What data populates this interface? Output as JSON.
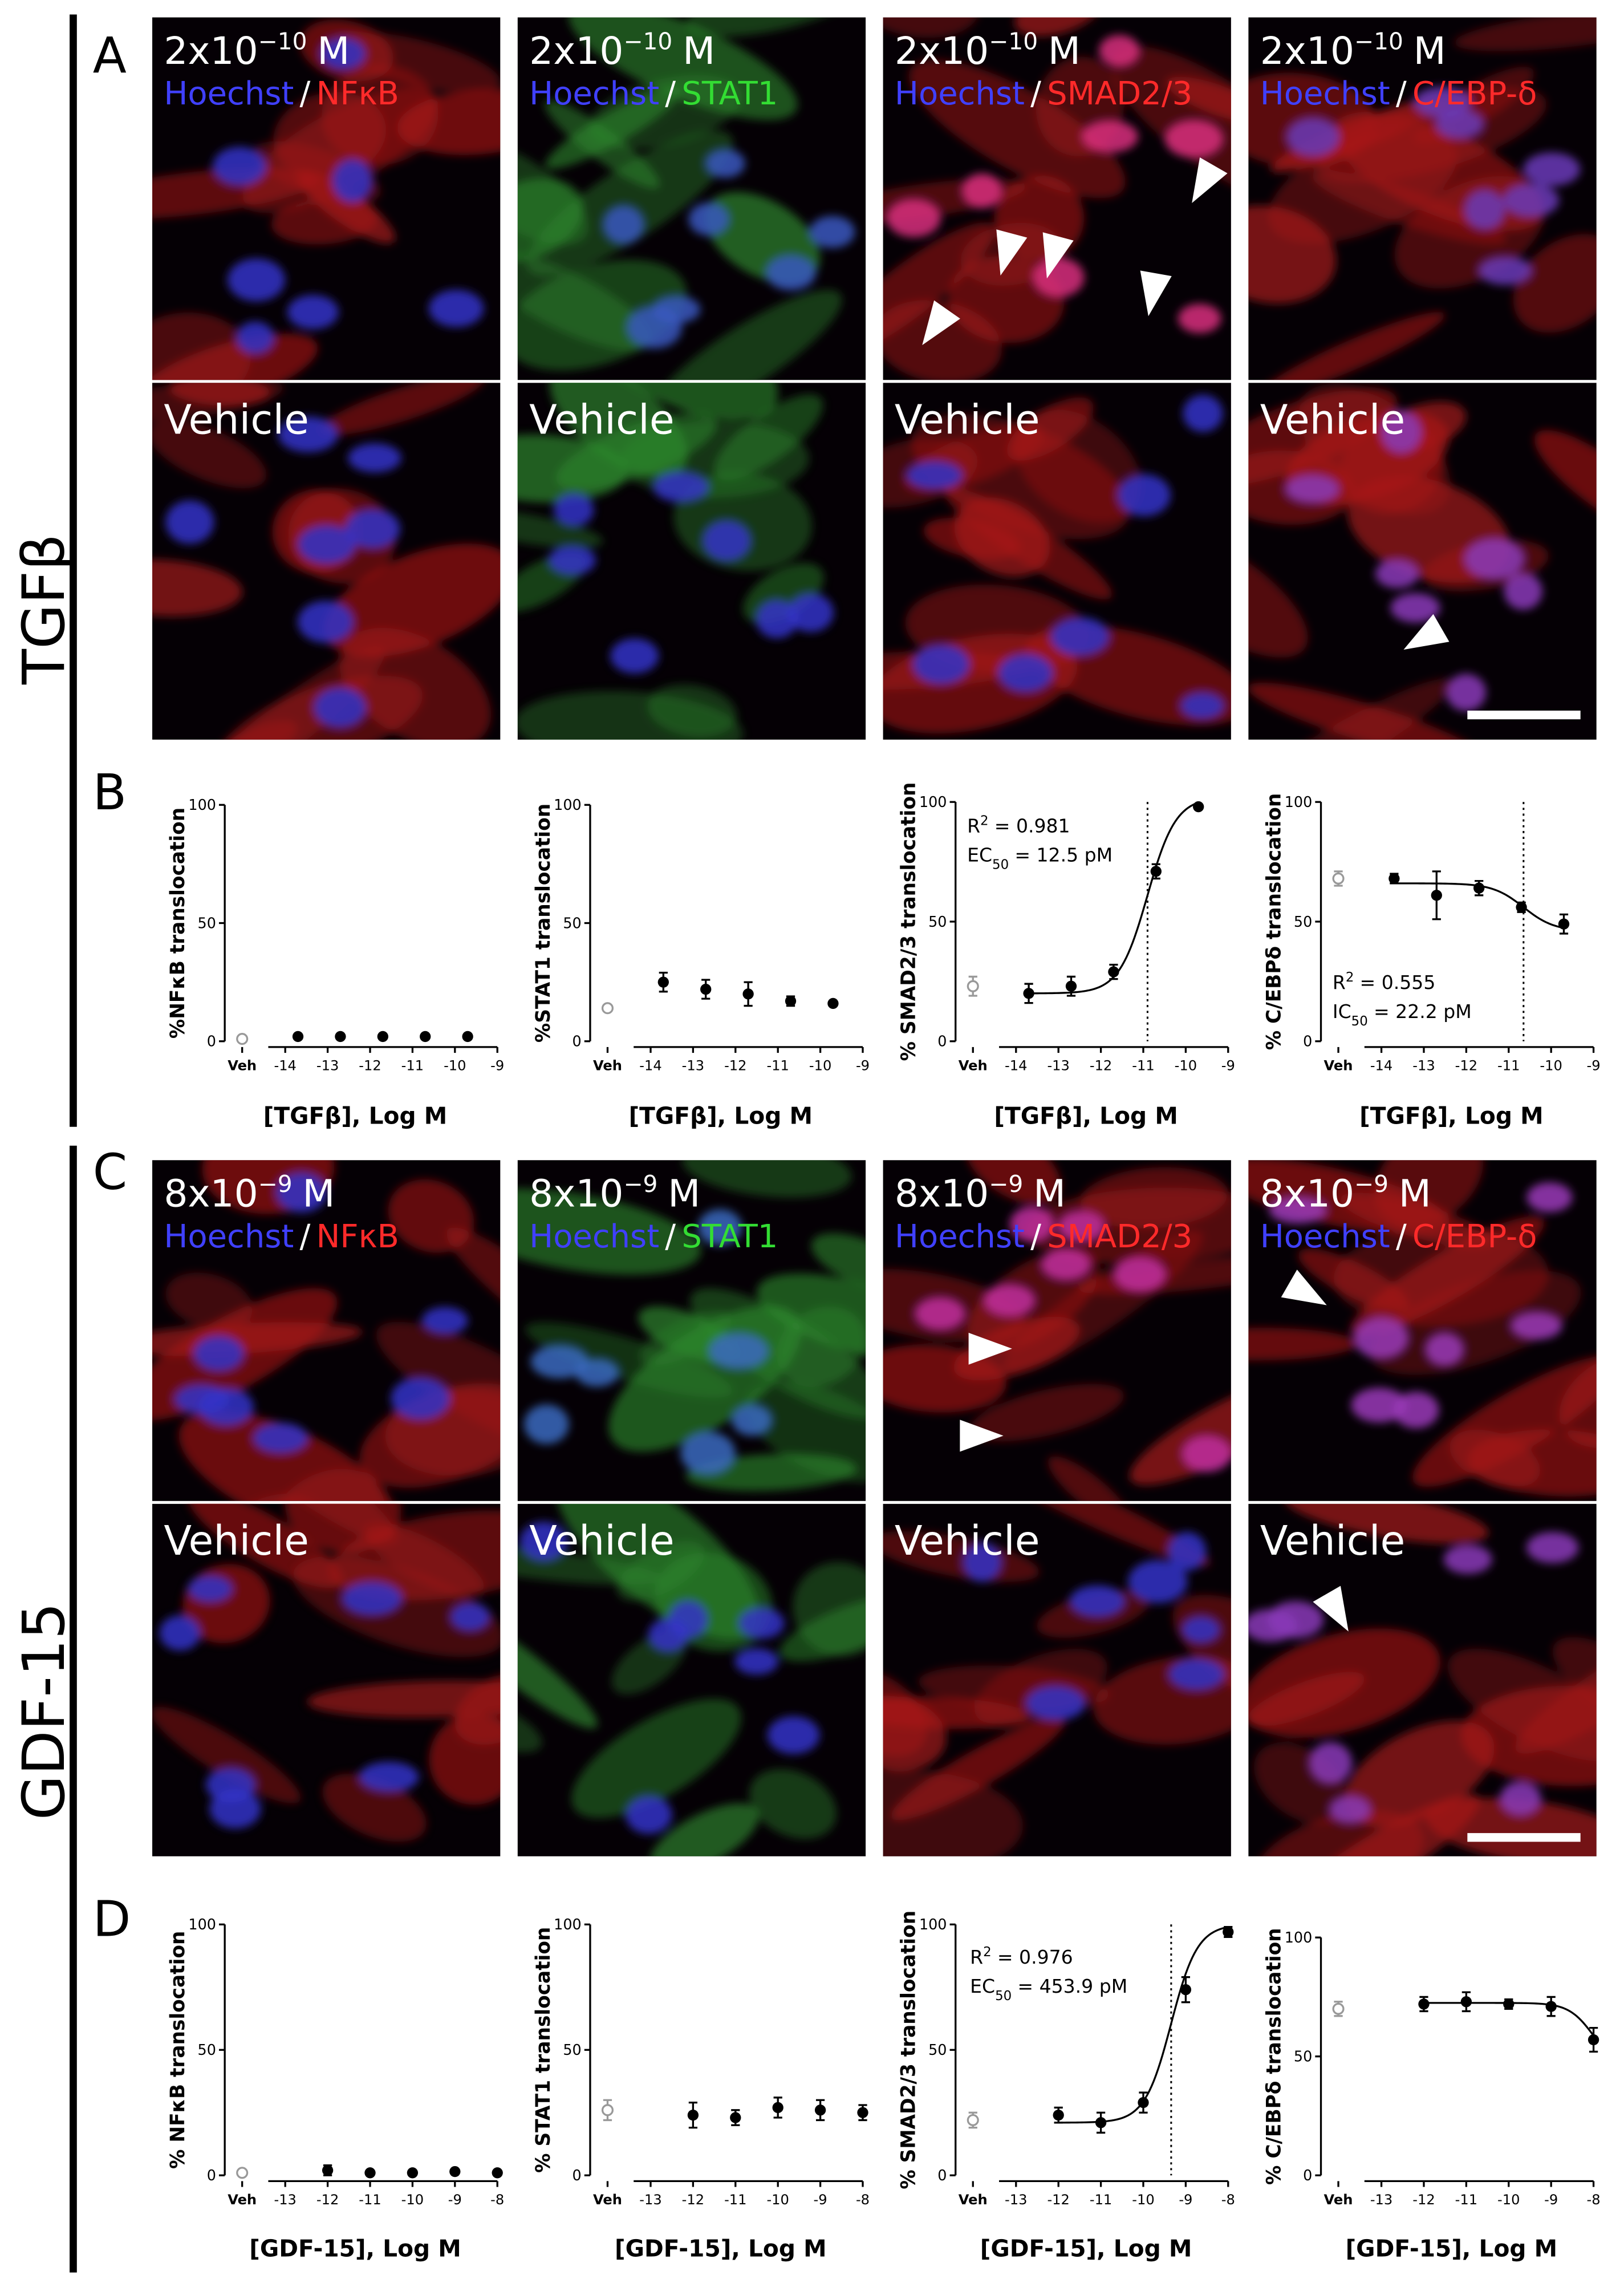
{
  "figure": {
    "sections": [
      {
        "row_label": "TGFβ",
        "image_letter": "A",
        "chart_letter": "B",
        "images": [
          {
            "dose": {
              "base": "2x10",
              "exponent": "−10",
              "unit": "M"
            },
            "channels": [
              {
                "text": "Hoechst",
                "color": "#4040ff"
              },
              {
                "text": "/",
                "color": "#ffffff"
              },
              {
                "text": "NFκB",
                "color": "#ff2a2a"
              }
            ],
            "vehicle_label": "Vehicle"
          },
          {
            "dose": {
              "base": "2x10",
              "exponent": "−10",
              "unit": "M"
            },
            "channels": [
              {
                "text": "Hoechst",
                "color": "#4040ff"
              },
              {
                "text": "/",
                "color": "#ffffff"
              },
              {
                "text": "STAT1",
                "color": "#33dd33"
              }
            ],
            "vehicle_label": "Vehicle"
          },
          {
            "dose": {
              "base": "2x10",
              "exponent": "−10",
              "unit": "M"
            },
            "channels": [
              {
                "text": "Hoechst",
                "color": "#4040ff"
              },
              {
                "text": "/",
                "color": "#ffffff"
              },
              {
                "text": "SMAD2/3",
                "color": "#ff2a2a"
              }
            ],
            "vehicle_label": "Vehicle"
          },
          {
            "dose": {
              "base": "2x10",
              "exponent": "−10",
              "unit": "M"
            },
            "channels": [
              {
                "text": "Hoechst",
                "color": "#4040ff"
              },
              {
                "text": "/",
                "color": "#ffffff"
              },
              {
                "text": "C/EBP-δ",
                "color": "#ff2a2a"
              }
            ],
            "vehicle_label": "Vehicle"
          }
        ]
      },
      {
        "row_label": "GDF-15",
        "image_letter": "C",
        "chart_letter": "D",
        "images": [
          {
            "dose": {
              "base": "8x10",
              "exponent": "−9",
              "unit": "M"
            },
            "channels": [
              {
                "text": "Hoechst",
                "color": "#4040ff"
              },
              {
                "text": "/",
                "color": "#ffffff"
              },
              {
                "text": "NFκB",
                "color": "#ff2a2a"
              }
            ],
            "vehicle_label": "Vehicle"
          },
          {
            "dose": {
              "base": "8x10",
              "exponent": "−9",
              "unit": "M"
            },
            "channels": [
              {
                "text": "Hoechst",
                "color": "#4040ff"
              },
              {
                "text": "/",
                "color": "#ffffff"
              },
              {
                "text": "STAT1",
                "color": "#33dd33"
              }
            ],
            "vehicle_label": "Vehicle"
          },
          {
            "dose": {
              "base": "8x10",
              "exponent": "−9",
              "unit": "M"
            },
            "channels": [
              {
                "text": "Hoechst",
                "color": "#4040ff"
              },
              {
                "text": "/",
                "color": "#ffffff"
              },
              {
                "text": "SMAD2/3",
                "color": "#ff2a2a"
              }
            ],
            "vehicle_label": "Vehicle"
          },
          {
            "dose": {
              "base": "8x10",
              "exponent": "−9",
              "unit": "M"
            },
            "channels": [
              {
                "text": "Hoechst",
                "color": "#4040ff"
              },
              {
                "text": "/",
                "color": "#ffffff"
              },
              {
                "text": "C/EBP-δ",
                "color": "#ff2a2a"
              }
            ],
            "vehicle_label": "Vehicle"
          }
        ]
      }
    ]
  },
  "chart_data": [
    {
      "type": "scatter",
      "ylabel": "%NFκB translocation",
      "xlabel": "[TGFβ], Log M",
      "ylim": [
        0,
        100
      ],
      "yticks": [
        0,
        50,
        100
      ],
      "xlim": [
        -14.4,
        -9
      ],
      "xticks": [
        -14,
        -13,
        -12,
        -11,
        -10,
        -9
      ],
      "color": "#000000",
      "vehicle": {
        "label": "Veh",
        "value": 1,
        "error": 0.5,
        "color": "#999999"
      },
      "x": [
        -13.7,
        -12.7,
        -11.7,
        -10.7,
        -9.7
      ],
      "values": [
        2,
        2,
        2,
        2,
        2
      ],
      "errors": [
        0.5,
        0.5,
        0.5,
        0.5,
        0.5
      ]
    },
    {
      "type": "scatter",
      "ylabel": "%STAT1 translocation",
      "xlabel": "[TGFβ], Log M",
      "ylim": [
        0,
        100
      ],
      "yticks": [
        0,
        50,
        100
      ],
      "xlim": [
        -14.4,
        -9
      ],
      "xticks": [
        -14,
        -13,
        -12,
        -11,
        -10,
        -9
      ],
      "color": "#000000",
      "vehicle": {
        "label": "Veh",
        "value": 14,
        "error": 1,
        "color": "#999999"
      },
      "x": [
        -13.7,
        -12.7,
        -11.7,
        -10.7,
        -9.7
      ],
      "values": [
        25,
        22,
        20,
        17,
        16
      ],
      "errors": [
        4,
        4,
        5,
        2,
        1
      ]
    },
    {
      "type": "scatter",
      "ylabel": "% SMAD2/3 translocation",
      "xlabel": "[TGFβ], Log M",
      "ylim": [
        0,
        100
      ],
      "yticks": [
        0,
        50,
        100
      ],
      "xlim": [
        -14.4,
        -9
      ],
      "xticks": [
        -14,
        -13,
        -12,
        -11,
        -10,
        -9
      ],
      "color": "#000000",
      "vehicle": {
        "label": "Veh",
        "value": 23,
        "error": 4,
        "color": "#999999"
      },
      "x": [
        -13.7,
        -12.7,
        -11.7,
        -10.7,
        -9.7
      ],
      "values": [
        20,
        23,
        29,
        71,
        98
      ],
      "errors": [
        4,
        4,
        3,
        3,
        1
      ],
      "fit": {
        "bottom": 20,
        "top": 102,
        "log_ec50": -10.9,
        "hill": 1.3,
        "dotted_line": true
      },
      "annotation": [
        [
          {
            "text": "R"
          },
          {
            "text": "2",
            "script": "sup"
          },
          {
            "text": "= 0.981"
          }
        ],
        [
          {
            "text": "EC"
          },
          {
            "text": "50",
            "script": "sub"
          },
          {
            "text": "= 12.5 pM"
          }
        ]
      ]
    },
    {
      "type": "scatter",
      "ylabel": "% C/EBPδ translocation",
      "xlabel": "[TGFβ], Log M",
      "ylim": [
        0,
        100
      ],
      "yticks": [
        0,
        50,
        100
      ],
      "xlim": [
        -14.4,
        -9
      ],
      "xticks": [
        -14,
        -13,
        -12,
        -11,
        -10,
        -9
      ],
      "color": "#000000",
      "vehicle": {
        "label": "Veh",
        "value": 68,
        "error": 3,
        "color": "#999999"
      },
      "x": [
        -13.7,
        -12.7,
        -11.7,
        -10.7,
        -9.7
      ],
      "values": [
        68,
        61,
        64,
        56,
        49
      ],
      "errors": [
        2,
        10,
        3,
        2,
        4
      ],
      "fit": {
        "bottom": 46,
        "top": 66,
        "log_ec50": -10.65,
        "hill": -1.2,
        "dotted_line": true
      },
      "annotation": [
        [
          {
            "text": "R"
          },
          {
            "text": "2",
            "script": "sup"
          },
          {
            "text": "= 0.555"
          }
        ],
        [
          {
            "text": "IC"
          },
          {
            "text": "50",
            "script": "sub"
          },
          {
            "text": "= 22.2 pM"
          }
        ]
      ]
    },
    {
      "type": "scatter",
      "ylabel": "% NFκB translocation",
      "xlabel": "[GDF-15], Log M",
      "ylim": [
        0,
        100
      ],
      "yticks": [
        0,
        50,
        100
      ],
      "xlim": [
        -13.4,
        -8
      ],
      "xticks": [
        -13,
        -12,
        -11,
        -10,
        -9,
        -8
      ],
      "color": "#000000",
      "vehicle": {
        "label": "Veh",
        "value": 1,
        "error": 0.5,
        "color": "#999999"
      },
      "x": [
        -12,
        -11,
        -10,
        -9,
        -8
      ],
      "values": [
        2,
        1,
        1,
        1.5,
        1
      ],
      "errors": [
        2,
        0.5,
        0.5,
        0.5,
        0.5
      ]
    },
    {
      "type": "scatter",
      "ylabel": "% STAT1 translocation",
      "xlabel": "[GDF-15], Log M",
      "ylim": [
        0,
        100
      ],
      "yticks": [
        0,
        50,
        100
      ],
      "xlim": [
        -13.4,
        -8
      ],
      "xticks": [
        -13,
        -12,
        -11,
        -10,
        -9,
        -8
      ],
      "color": "#000000",
      "vehicle": {
        "label": "Veh",
        "value": 26,
        "error": 4,
        "color": "#999999"
      },
      "x": [
        -12,
        -11,
        -10,
        -9,
        -8
      ],
      "values": [
        24,
        23,
        27,
        26,
        25
      ],
      "errors": [
        5,
        3,
        4,
        4,
        3
      ]
    },
    {
      "type": "scatter",
      "ylabel": "% SMAD2/3 translocation",
      "xlabel": "[GDF-15], Log M",
      "ylim": [
        0,
        100
      ],
      "yticks": [
        0,
        50,
        100
      ],
      "xlim": [
        -13.4,
        -8
      ],
      "xticks": [
        -13,
        -12,
        -11,
        -10,
        -9,
        -8
      ],
      "color": "#000000",
      "vehicle": {
        "label": "Veh",
        "value": 22,
        "error": 3,
        "color": "#999999"
      },
      "x": [
        -12,
        -11,
        -10,
        -9,
        -8
      ],
      "values": [
        24,
        21,
        29,
        74,
        97
      ],
      "errors": [
        3,
        4,
        4,
        5,
        2
      ],
      "fit": {
        "bottom": 21,
        "top": 100,
        "log_ec50": -9.343,
        "hill": 1.4,
        "dotted_line": true
      },
      "annotation": [
        [
          {
            "text": "R"
          },
          {
            "text": "2",
            "script": "sup"
          },
          {
            "text": "= 0.976"
          }
        ],
        [
          {
            "text": "EC"
          },
          {
            "text": "50",
            "script": "sub"
          },
          {
            "text": "= 453.9 pM"
          }
        ]
      ]
    },
    {
      "type": "scatter",
      "ylabel": "% C/EBPδ translocation",
      "xlabel": "[GDF-15], Log M",
      "ylim": [
        0,
        100
      ],
      "yticks": [
        0,
        50,
        100
      ],
      "xlim": [
        -13.4,
        -8
      ],
      "xticks": [
        -13,
        -12,
        -11,
        -10,
        -9,
        -8
      ],
      "color": "#000000",
      "vehicle": {
        "label": "Veh",
        "value": 70,
        "error": 3,
        "color": "#999999"
      },
      "x": [
        -12,
        -11,
        -10,
        -9,
        -8
      ],
      "values": [
        72,
        73,
        72,
        71,
        57
      ],
      "errors": [
        3,
        4,
        2,
        4,
        5
      ],
      "fit": {
        "bottom": 45,
        "top": 72.5,
        "log_ec50": -8,
        "hill": -1.5,
        "dotted_line": false
      }
    }
  ]
}
